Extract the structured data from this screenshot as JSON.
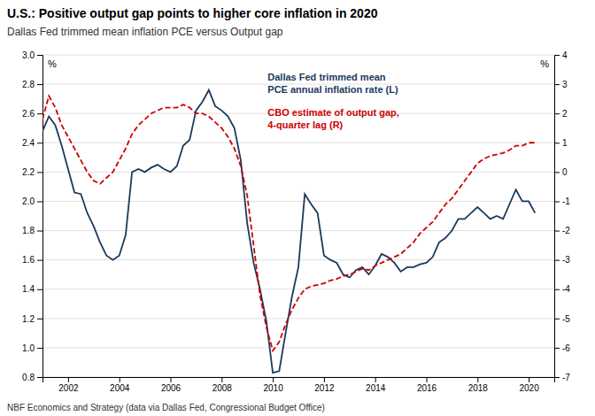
{
  "chart_data": {
    "type": "line",
    "title": "U.S.: Positive output gap points to higher core inflation in 2020",
    "subtitle": "Dallas Fed trimmed mean inflation PCE versus Output gap",
    "footnote": "NBF Economics and Strategy (data via Dallas Fed, Congressional Budget Office)",
    "ylabel": "%",
    "y2label": "%",
    "x": [
      2001.0,
      2001.25,
      2001.5,
      2001.75,
      2002.0,
      2002.25,
      2002.5,
      2002.75,
      2003.0,
      2003.25,
      2003.5,
      2003.75,
      2004.0,
      2004.25,
      2004.5,
      2004.75,
      2005.0,
      2005.25,
      2005.5,
      2005.75,
      2006.0,
      2006.25,
      2006.5,
      2006.75,
      2007.0,
      2007.25,
      2007.5,
      2007.75,
      2008.0,
      2008.25,
      2008.5,
      2008.75,
      2009.0,
      2009.25,
      2009.5,
      2009.75,
      2010.0,
      2010.25,
      2010.5,
      2010.75,
      2011.0,
      2011.25,
      2011.5,
      2011.75,
      2012.0,
      2012.25,
      2012.5,
      2012.75,
      2013.0,
      2013.25,
      2013.5,
      2013.75,
      2014.0,
      2014.25,
      2014.5,
      2014.75,
      2015.0,
      2015.25,
      2015.5,
      2015.75,
      2016.0,
      2016.25,
      2016.5,
      2016.75,
      2017.0,
      2017.25,
      2017.5,
      2017.75,
      2018.0,
      2018.25,
      2018.5,
      2018.75,
      2019.0,
      2019.25,
      2019.5,
      2019.75,
      2020.0,
      2020.25
    ],
    "series": [
      {
        "name": "Dallas Fed trimmed mean\nPCE annual inflation rate (L)",
        "color": "#1a3a5c",
        "line_style": "solid",
        "values": [
          2.48,
          2.58,
          2.52,
          2.38,
          2.22,
          2.06,
          2.05,
          1.92,
          1.83,
          1.72,
          1.63,
          1.6,
          1.63,
          1.77,
          2.2,
          2.22,
          2.2,
          2.23,
          2.25,
          2.22,
          2.2,
          2.24,
          2.38,
          2.42,
          2.62,
          2.68,
          2.76,
          2.65,
          2.62,
          2.58,
          2.5,
          2.28,
          1.85,
          1.58,
          1.4,
          1.18,
          0.83,
          0.84,
          1.1,
          1.35,
          1.55,
          2.05,
          1.98,
          1.92,
          1.63,
          1.6,
          1.58,
          1.5,
          1.48,
          1.53,
          1.55,
          1.5,
          1.56,
          1.64,
          1.62,
          1.58,
          1.52,
          1.55,
          1.55,
          1.57,
          1.58,
          1.62,
          1.72,
          1.75,
          1.8,
          1.88,
          1.88,
          1.92,
          1.96,
          1.92,
          1.88,
          1.9,
          1.88,
          1.98,
          2.08,
          2.0,
          2.0,
          1.92
        ]
      },
      {
        "name": "CBO estimate of output gap,\n4-quarter lag (R)",
        "color": "#cc0000",
        "line_style": "dashed",
        "axis": "y2",
        "values": [
          1.8,
          2.6,
          2.2,
          1.6,
          1.2,
          0.8,
          0.4,
          0.0,
          -0.3,
          -0.4,
          -0.2,
          0.0,
          0.4,
          0.8,
          1.3,
          1.6,
          1.8,
          2.0,
          2.1,
          2.2,
          2.2,
          2.2,
          2.3,
          2.2,
          2.0,
          2.0,
          1.9,
          1.7,
          1.5,
          1.2,
          0.8,
          0.2,
          -0.8,
          -2.5,
          -4.2,
          -5.3,
          -6.1,
          -5.8,
          -5.2,
          -4.7,
          -4.3,
          -4.0,
          -3.9,
          -3.85,
          -3.8,
          -3.7,
          -3.65,
          -3.55,
          -3.5,
          -3.4,
          -3.3,
          -3.35,
          -3.2,
          -3.1,
          -3.0,
          -2.9,
          -2.8,
          -2.6,
          -2.4,
          -2.1,
          -1.9,
          -1.7,
          -1.4,
          -1.1,
          -0.9,
          -0.6,
          -0.3,
          0.0,
          0.3,
          0.45,
          0.55,
          0.6,
          0.65,
          0.75,
          0.9,
          0.9,
          1.0,
          1.0
        ]
      }
    ],
    "xlim": [
      2001.0,
      2021.0
    ],
    "xticks": [
      2002,
      2004,
      2006,
      2008,
      2010,
      2012,
      2014,
      2016,
      2018,
      2020
    ],
    "ylim": [
      0.8,
      3.0
    ],
    "yticks": [
      0.8,
      {
        "value": 1,
        "label": "1.0"
      },
      1.2,
      1.4,
      1.6,
      1.8,
      {
        "value": 2,
        "label": "2.0"
      },
      2.2,
      2.4,
      2.6,
      2.8,
      {
        "value": 3,
        "label": "3.0"
      }
    ],
    "y2lim": [
      -7,
      4
    ],
    "y2ticks": [
      -7,
      -6,
      -5,
      -4,
      -3,
      -2,
      -1,
      0,
      1,
      2,
      3,
      4
    ],
    "grid": true
  }
}
